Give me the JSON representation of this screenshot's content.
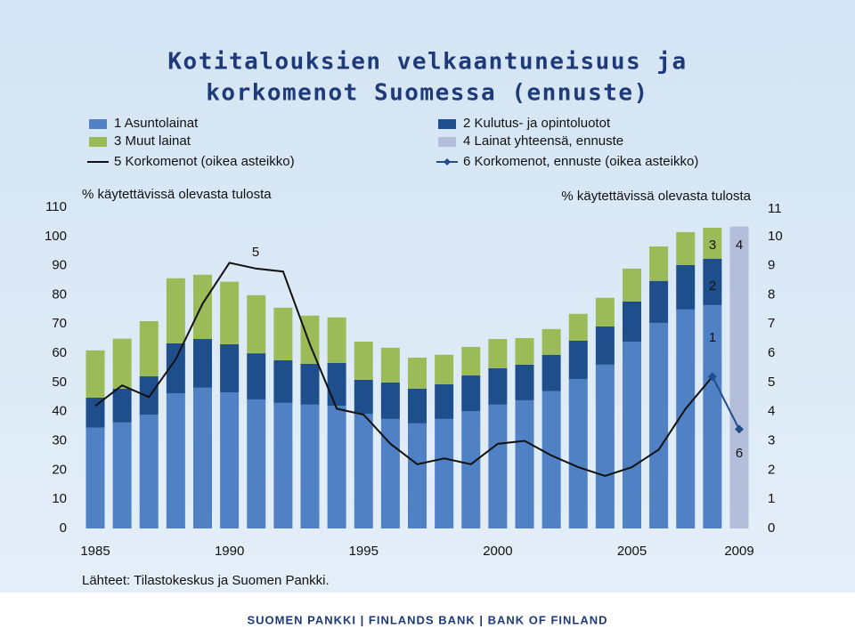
{
  "chart_data": {
    "type": "bar",
    "title": [
      "Kotitalouksien velkaantuneisuus ja",
      "korkomenot Suomessa (ennuste)"
    ],
    "y_label": "% käytettävissä olevasta tulosta",
    "y2_label": "% käytettävissä olevasta tulosta",
    "categories": [
      "1985",
      null,
      null,
      null,
      null,
      "1990",
      null,
      null,
      null,
      null,
      "1995",
      null,
      null,
      null,
      null,
      "2000",
      null,
      null,
      null,
      null,
      "2005",
      null,
      null,
      null,
      "2009"
    ],
    "ylim": [
      0,
      110
    ],
    "yticks": [
      0,
      10,
      20,
      30,
      40,
      50,
      60,
      70,
      80,
      90,
      100,
      110
    ],
    "y2lim": [
      0,
      11
    ],
    "y2ticks": [
      0,
      1,
      2,
      3,
      4,
      5,
      6,
      7,
      8,
      9,
      10,
      11
    ],
    "stacked": true,
    "series": [
      {
        "name": "1 Asuntolainat",
        "color": "#4f81c4",
        "values": [
          34.5,
          36.3,
          39,
          46.3,
          48.2,
          46.6,
          44.2,
          43,
          42.4,
          42,
          39.3,
          37.5,
          36,
          37.5,
          40.2,
          42.4,
          43.9,
          47,
          51.2,
          56.1,
          64,
          70.4,
          75,
          76.5,
          null
        ]
      },
      {
        "name": "2 Kulutus- ja opintoluotot",
        "color": "#1f4e8c",
        "values": [
          10.3,
          11.6,
          13.1,
          17.1,
          16.7,
          16.5,
          15.8,
          14.6,
          14,
          14.7,
          11.6,
          12.5,
          11.9,
          11.9,
          12.2,
          12.5,
          12.2,
          12.5,
          13.1,
          13.1,
          13.7,
          14.4,
          15.2,
          15.9,
          null
        ]
      },
      {
        "name": "3 Muut lainat",
        "color": "#9bbb59",
        "values": [
          16.2,
          17.1,
          18.9,
          22.3,
          22,
          21.4,
          19.9,
          18,
          16.5,
          15.6,
          13.1,
          11.9,
          10.6,
          10.1,
          9.8,
          10,
          9.1,
          8.8,
          9.2,
          9.8,
          11.3,
          11.8,
          11.3,
          10.6,
          null
        ]
      },
      {
        "name": "4 Lainat yhteensä, ennuste",
        "color": "#b4bedb",
        "values": [
          null,
          null,
          null,
          null,
          null,
          null,
          null,
          null,
          null,
          null,
          null,
          null,
          null,
          null,
          null,
          null,
          null,
          null,
          null,
          null,
          null,
          null,
          null,
          null,
          103.4
        ]
      },
      {
        "name": "5 Korkomenot (oikea asteikko)",
        "color": "#111111",
        "type": "line",
        "axis": "y2",
        "values": [
          4.2,
          4.9,
          4.5,
          5.8,
          7.7,
          9.1,
          8.9,
          8.8,
          6.3,
          4.1,
          3.9,
          2.9,
          2.2,
          2.4,
          2.2,
          2.9,
          3.0,
          2.5,
          2.1,
          1.8,
          2.1,
          2.7,
          4.1,
          5.2,
          null
        ]
      },
      {
        "name": "6 Korkomenot, ennuste (oikea asteikko)",
        "color": "#1f4e8c",
        "type": "line",
        "marker": "diamond",
        "axis": "y2",
        "values": [
          null,
          null,
          null,
          null,
          null,
          null,
          null,
          null,
          null,
          null,
          null,
          null,
          null,
          null,
          null,
          null,
          null,
          null,
          null,
          null,
          null,
          null,
          null,
          5.2,
          3.4
        ]
      }
    ],
    "annotations": [
      "5",
      "3",
      "4",
      "2",
      "1",
      "6"
    ],
    "source": "Lähteet: Tilastokeskus ja Suomen Pankki.",
    "footer": "SUOMEN PANKKI | FINLANDS BANK | BANK OF FINLAND"
  }
}
